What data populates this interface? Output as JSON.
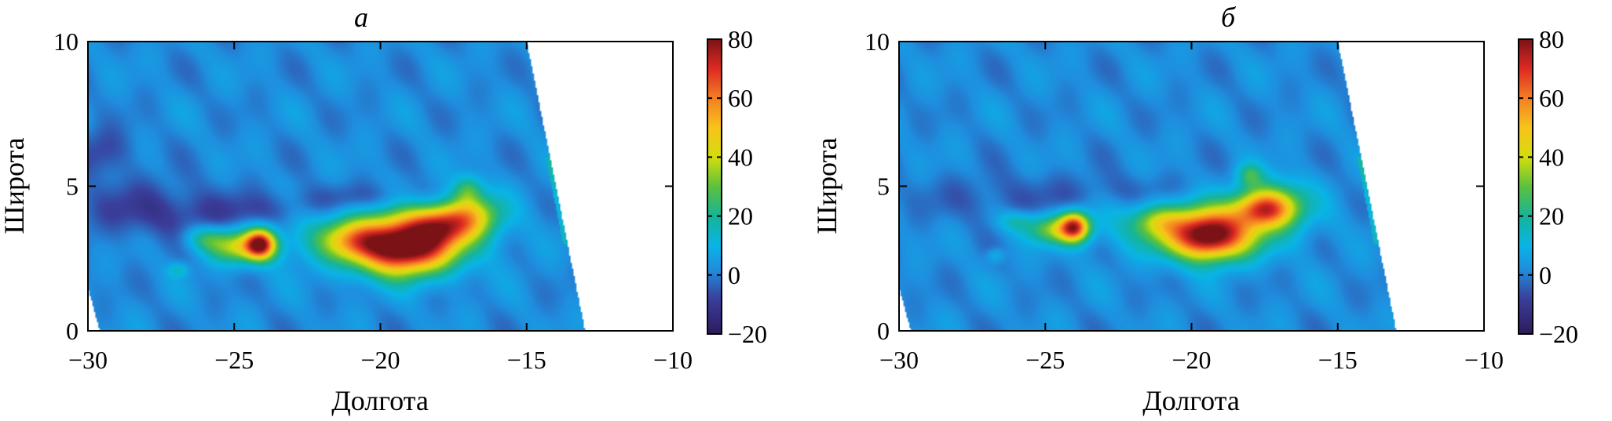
{
  "chart_data": [
    {
      "type": "heatmap",
      "title": "а",
      "xlabel": "Долгота",
      "ylabel": "Широта",
      "xlim": [
        -30,
        -10
      ],
      "ylim": [
        0,
        10
      ],
      "x_ticks": [
        "−30",
        "−25",
        "−20",
        "−15",
        "−10"
      ],
      "y_ticks": [
        "0",
        "5",
        "10"
      ],
      "colorbar": {
        "range": [
          -20,
          80
        ],
        "ticks": [
          "−20",
          "0",
          "20",
          "40",
          "60",
          "80"
        ],
        "colormap": "jet-like"
      },
      "swath_east_edge": {
        "lon_at_lat0": -13.0,
        "lon_at_lat10": -15.0
      },
      "swath_west_edge": {
        "lon_at_lat0": -29.6,
        "lon_at_lat1.5": -30.0
      },
      "background_value": 2,
      "features": [
        {
          "kind": "blob",
          "lon": -19.2,
          "lat": 2.8,
          "value": 68,
          "rx": 1.6,
          "ry": 0.9
        },
        {
          "kind": "blob",
          "lon": -19.8,
          "lat": 3.3,
          "value": 35,
          "rx": 2.8,
          "ry": 1.0
        },
        {
          "kind": "blob",
          "lon": -17.8,
          "lat": 3.7,
          "value": 45,
          "rx": 1.2,
          "ry": 0.7
        },
        {
          "kind": "blob",
          "lon": -16.8,
          "lat": 4.1,
          "value": 28,
          "rx": 1.0,
          "ry": 0.7
        },
        {
          "kind": "blob",
          "lon": -17.0,
          "lat": 4.9,
          "value": 22,
          "rx": 0.5,
          "ry": 0.5
        },
        {
          "kind": "blob",
          "lon": -21.0,
          "lat": 3.1,
          "value": 20,
          "rx": 1.0,
          "ry": 0.6
        },
        {
          "kind": "blob",
          "lon": -24.1,
          "lat": 3.0,
          "value": 62,
          "rx": 0.5,
          "ry": 0.5
        },
        {
          "kind": "blob",
          "lon": -24.8,
          "lat": 2.9,
          "value": 38,
          "rx": 1.1,
          "ry": 0.55
        },
        {
          "kind": "blob",
          "lon": -26.0,
          "lat": 3.2,
          "value": 18,
          "rx": 0.7,
          "ry": 0.4
        },
        {
          "kind": "blob",
          "lon": -26.9,
          "lat": 2.1,
          "value": 14,
          "rx": 0.35,
          "ry": 0.25
        },
        {
          "kind": "blob",
          "lon": -28.0,
          "lat": 4.2,
          "value": -8,
          "rx": 2.5,
          "ry": 1.0
        },
        {
          "kind": "blob",
          "lon": -24.0,
          "lat": 4.1,
          "value": -6,
          "rx": 3.0,
          "ry": 0.6
        },
        {
          "kind": "blob",
          "lon": -20.5,
          "lat": 4.6,
          "value": -6,
          "rx": 2.5,
          "ry": 0.5
        },
        {
          "kind": "blob",
          "lon": -29.5,
          "lat": 6.2,
          "value": -8,
          "rx": 1.0,
          "ry": 0.8
        }
      ]
    },
    {
      "type": "heatmap",
      "title": "б",
      "xlabel": "Долгота",
      "ylabel": "Широта",
      "xlim": [
        -30,
        -10
      ],
      "ylim": [
        0,
        10
      ],
      "x_ticks": [
        "−30",
        "−25",
        "−20",
        "−15",
        "−10"
      ],
      "y_ticks": [
        "0",
        "5",
        "10"
      ],
      "colorbar": {
        "range": [
          -20,
          80
        ],
        "ticks": [
          "−20",
          "0",
          "20",
          "40",
          "60",
          "80"
        ],
        "colormap": "jet-like"
      },
      "swath_east_edge": {
        "lon_at_lat0": -13.0,
        "lon_at_lat10": -15.0
      },
      "swath_west_edge": {
        "lon_at_lat0": -29.6,
        "lon_at_lat1.5": -30.0
      },
      "background_value": 2,
      "features": [
        {
          "kind": "blob",
          "lon": -19.4,
          "lat": 3.2,
          "value": 62,
          "rx": 1.3,
          "ry": 0.8
        },
        {
          "kind": "blob",
          "lon": -19.6,
          "lat": 3.6,
          "value": 35,
          "rx": 2.6,
          "ry": 0.9
        },
        {
          "kind": "blob",
          "lon": -17.5,
          "lat": 4.2,
          "value": 45,
          "rx": 1.0,
          "ry": 0.6
        },
        {
          "kind": "blob",
          "lon": -17.2,
          "lat": 4.5,
          "value": 25,
          "rx": 1.2,
          "ry": 0.8
        },
        {
          "kind": "blob",
          "lon": -18.0,
          "lat": 5.4,
          "value": 20,
          "rx": 0.45,
          "ry": 0.4
        },
        {
          "kind": "blob",
          "lon": -21.2,
          "lat": 3.8,
          "value": 18,
          "rx": 0.8,
          "ry": 0.5
        },
        {
          "kind": "blob",
          "lon": -24.0,
          "lat": 3.6,
          "value": 60,
          "rx": 0.5,
          "ry": 0.5
        },
        {
          "kind": "blob",
          "lon": -24.7,
          "lat": 3.5,
          "value": 32,
          "rx": 1.0,
          "ry": 0.5
        },
        {
          "kind": "blob",
          "lon": -26.0,
          "lat": 3.8,
          "value": 15,
          "rx": 0.6,
          "ry": 0.35
        },
        {
          "kind": "blob",
          "lon": -26.7,
          "lat": 2.6,
          "value": 12,
          "rx": 0.3,
          "ry": 0.25
        },
        {
          "kind": "blob",
          "lon": -26.5,
          "lat": 4.6,
          "value": -4,
          "rx": 3.0,
          "ry": 0.8
        },
        {
          "kind": "blob",
          "lon": -22.0,
          "lat": 4.8,
          "value": -3,
          "rx": 2.5,
          "ry": 0.6
        }
      ]
    }
  ]
}
